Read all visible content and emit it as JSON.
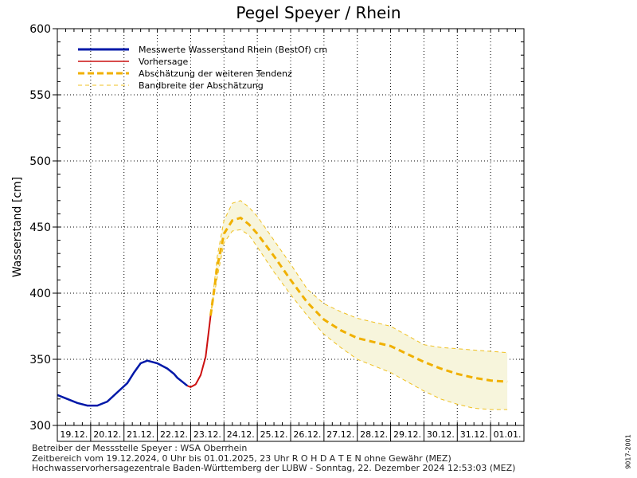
{
  "chart_data": {
    "type": "line",
    "title": "Pegel Speyer / Rhein",
    "ylabel": "Wasserstand [cm]",
    "xlabel": "",
    "ylim": [
      300,
      600
    ],
    "yticks": [
      300,
      350,
      400,
      450,
      500,
      550,
      600
    ],
    "x_tick_labels": [
      "19.12.",
      "20.12.",
      "21.12.",
      "22.12.",
      "23.12.",
      "24.12.",
      "25.12.",
      "26.12.",
      "27.12.",
      "28.12.",
      "29.12.",
      "30.12.",
      "31.12.",
      "01.01."
    ],
    "x_unit": "days from 19.12.2024 00:00",
    "xlim": [
      0,
      14
    ],
    "grid": true,
    "legend_position": "top-left",
    "series": [
      {
        "name": "Messwerte Wasserstand Rhein (BestOf)   cm",
        "color": "#0018a8",
        "style": "solid-thick",
        "x": [
          0,
          0.3,
          0.6,
          0.9,
          1.2,
          1.5,
          1.8,
          2.1,
          2.3,
          2.5,
          2.7,
          3.0,
          3.3,
          3.5,
          3.6,
          3.75,
          3.9
        ],
        "y": [
          323,
          320,
          317,
          315,
          315,
          318,
          325,
          332,
          340,
          347,
          349,
          347,
          343,
          339,
          336,
          333,
          330
        ]
      },
      {
        "name": "Vorhersage",
        "color": "#cc1010",
        "style": "solid",
        "x": [
          3.9,
          4.0,
          4.15,
          4.3,
          4.45,
          4.6
        ],
        "y": [
          330,
          329,
          331,
          338,
          352,
          383
        ]
      },
      {
        "name": "Abschätzung der weiteren Tendenz",
        "color": "#f0b000",
        "style": "dashed-thick",
        "x": [
          4.6,
          4.8,
          5.0,
          5.25,
          5.5,
          5.75,
          6.0,
          6.5,
          7.0,
          7.5,
          8.0,
          8.5,
          9.0,
          9.5,
          10.0,
          10.5,
          11.0,
          11.5,
          12.0,
          12.5,
          13.0,
          13.5
        ],
        "y": [
          383,
          420,
          445,
          455,
          457,
          452,
          445,
          428,
          410,
          393,
          380,
          372,
          366,
          363,
          360,
          354,
          348,
          343,
          339,
          336,
          334,
          333
        ]
      },
      {
        "name": "Bandbreite der Abschätzung",
        "color": "#f0c020",
        "style": "dashed-thin",
        "x": [
          4.6,
          4.8,
          5.0,
          5.25,
          5.5,
          5.75,
          6.0,
          6.5,
          7.0,
          7.5,
          8.0,
          8.5,
          9.0,
          9.5,
          10.0,
          10.5,
          11.0,
          11.5,
          12.0,
          12.5,
          13.0,
          13.5
        ],
        "upper": [
          383,
          428,
          455,
          468,
          470,
          465,
          458,
          440,
          422,
          403,
          392,
          386,
          381,
          378,
          375,
          368,
          361,
          359,
          358,
          357,
          356,
          355
        ],
        "lower": [
          383,
          412,
          438,
          447,
          448,
          444,
          435,
          416,
          399,
          383,
          369,
          359,
          350,
          345,
          340,
          333,
          326,
          320,
          316,
          313,
          312,
          312
        ]
      }
    ]
  },
  "footer": {
    "line1": "Betreiber der Messstelle Speyer : WSA Oberrhein",
    "line2": "Zeitbereich vom 19.12.2024, 0 Uhr bis 01.01.2025, 23 Uhr    R O H D A T E N ohne Gewähr (MEZ)",
    "line3": "Hochwasservorhersagezentrale Baden-Württemberg der LUBW - Sonntag, 22. Dezember 2024 12:53:03 (MEZ)"
  },
  "side_id": "9017-2001"
}
